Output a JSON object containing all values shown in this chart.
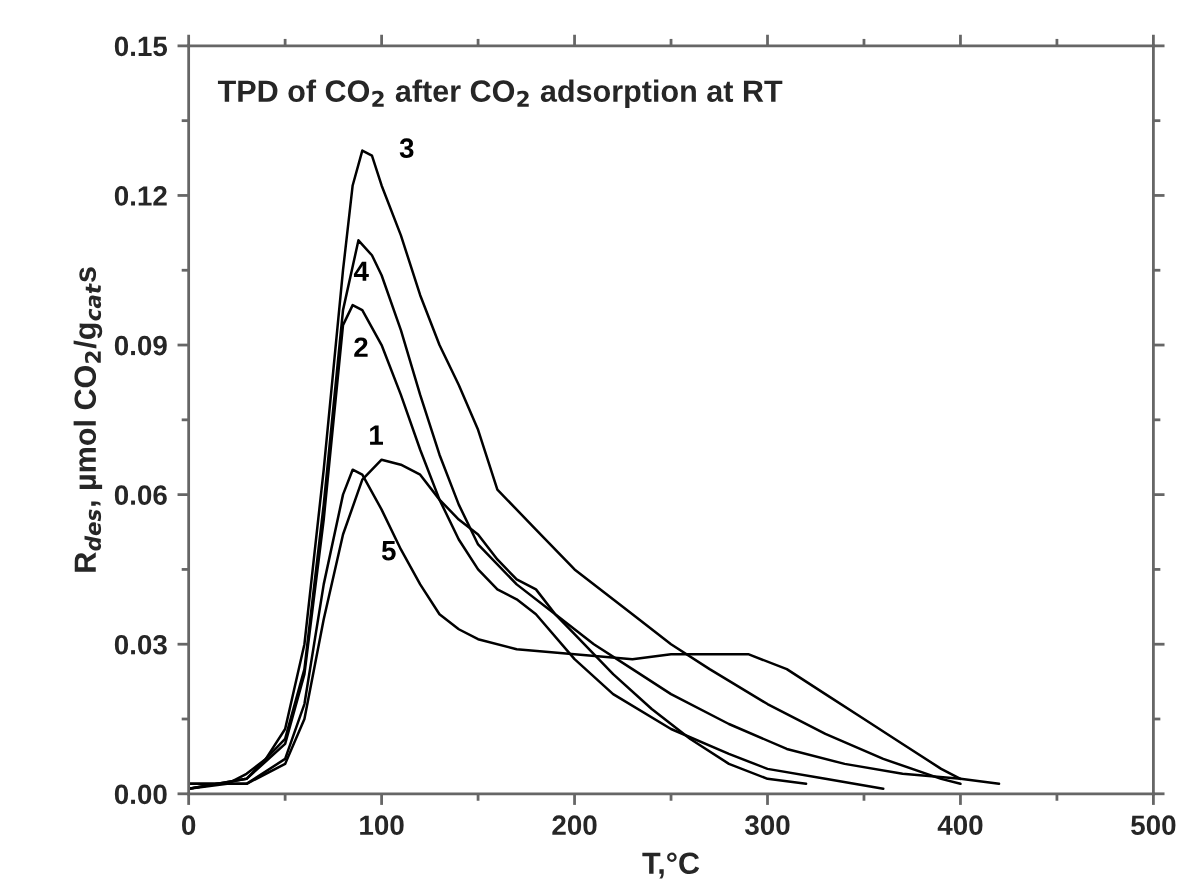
{
  "chart_data": {
    "type": "line",
    "title": "TPD of CO$_{2}$ after CO$_{2}$ adsorption at RT",
    "xlabel": "T,°C",
    "ylabel": "R$_{des}$, µmol CO$_{2}$/g$_{cat}$s",
    "xlim": [
      0,
      500
    ],
    "xticks": [
      0,
      100,
      200,
      300,
      400,
      500
    ],
    "ylim": [
      0,
      0.15
    ],
    "yticks": [
      {
        "value": 0,
        "label": "0.00"
      },
      {
        "value": 0.03,
        "label": "0.03"
      },
      {
        "value": 0.06,
        "label": "0.06"
      },
      {
        "value": 0.09,
        "label": "0.09"
      },
      {
        "value": 0.12,
        "label": "0.12"
      },
      {
        "value": 0.15,
        "label": "0.15"
      }
    ],
    "grid": false,
    "legend": false,
    "marker": "none",
    "line_style": "solid",
    "series": [
      {
        "name": "1",
        "color": "#000000",
        "x": [
          0,
          30,
          50,
          60,
          70,
          80,
          90,
          100,
          110,
          120,
          130,
          140,
          150,
          160,
          170,
          180,
          190,
          200,
          220,
          240,
          260,
          280,
          300,
          320
        ],
        "values": [
          0.002,
          0.002,
          0.006,
          0.015,
          0.035,
          0.052,
          0.063,
          0.067,
          0.066,
          0.064,
          0.059,
          0.055,
          0.052,
          0.047,
          0.043,
          0.041,
          0.036,
          0.032,
          0.024,
          0.017,
          0.011,
          0.006,
          0.003,
          0.002
        ]
      },
      {
        "name": "2",
        "color": "#000000",
        "x": [
          0,
          30,
          50,
          60,
          70,
          80,
          85,
          90,
          100,
          110,
          120,
          130,
          140,
          150,
          160,
          170,
          180,
          200,
          220,
          250,
          280,
          300,
          330,
          360
        ],
        "values": [
          0.001,
          0.003,
          0.01,
          0.024,
          0.055,
          0.094,
          0.098,
          0.097,
          0.09,
          0.08,
          0.069,
          0.059,
          0.051,
          0.045,
          0.041,
          0.039,
          0.036,
          0.027,
          0.02,
          0.013,
          0.008,
          0.005,
          0.003,
          0.001
        ]
      },
      {
        "name": "3",
        "color": "#000000",
        "x": [
          0,
          20,
          30,
          40,
          50,
          60,
          70,
          80,
          85,
          90,
          95,
          100,
          110,
          120,
          130,
          140,
          150,
          160,
          180,
          200,
          230,
          250,
          270,
          300,
          330,
          360,
          390,
          400
        ],
        "values": [
          0.001,
          0.002,
          0.004,
          0.007,
          0.013,
          0.03,
          0.065,
          0.105,
          0.122,
          0.129,
          0.128,
          0.122,
          0.112,
          0.1,
          0.09,
          0.082,
          0.073,
          0.061,
          0.053,
          0.045,
          0.036,
          0.03,
          0.025,
          0.018,
          0.012,
          0.007,
          0.003,
          0.002
        ]
      },
      {
        "name": "4",
        "color": "#000000",
        "x": [
          0,
          30,
          50,
          60,
          70,
          80,
          88,
          95,
          100,
          110,
          120,
          130,
          140,
          150,
          170,
          190,
          210,
          230,
          250,
          280,
          310,
          340,
          370,
          400,
          420
        ],
        "values": [
          0.001,
          0.003,
          0.011,
          0.025,
          0.058,
          0.097,
          0.111,
          0.108,
          0.104,
          0.093,
          0.08,
          0.068,
          0.058,
          0.05,
          0.042,
          0.036,
          0.03,
          0.025,
          0.02,
          0.014,
          0.009,
          0.006,
          0.004,
          0.003,
          0.002
        ]
      },
      {
        "name": "5",
        "color": "#000000",
        "x": [
          0,
          30,
          50,
          60,
          70,
          80,
          85,
          90,
          100,
          110,
          120,
          130,
          140,
          150,
          170,
          200,
          230,
          250,
          270,
          290,
          310,
          330,
          350,
          370,
          390,
          400
        ],
        "values": [
          0.002,
          0.002,
          0.007,
          0.018,
          0.042,
          0.06,
          0.065,
          0.064,
          0.057,
          0.049,
          0.042,
          0.036,
          0.033,
          0.031,
          0.029,
          0.028,
          0.027,
          0.028,
          0.028,
          0.028,
          0.025,
          0.02,
          0.015,
          0.01,
          0.005,
          0.003
        ]
      }
    ]
  }
}
